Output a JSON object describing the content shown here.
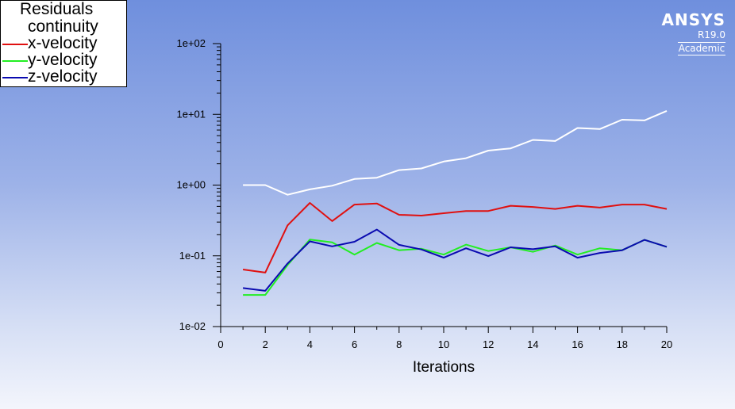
{
  "chart_data": {
    "type": "line",
    "xlabel": "Iterations",
    "ylabel": "",
    "xlim": [
      0,
      20
    ],
    "ylim": [
      0.01,
      100
    ],
    "yscale": "log",
    "xticks": [
      "0",
      "2",
      "4",
      "6",
      "8",
      "10",
      "12",
      "14",
      "16",
      "18",
      "20"
    ],
    "yticks": [
      "1e-02",
      "1e-01",
      "1e+00",
      "1e+01",
      "1e+02"
    ],
    "grid": false,
    "legend_title": "Residuals",
    "legend_position": "top-left",
    "x": [
      1,
      2,
      3,
      4,
      5,
      6,
      7,
      8,
      9,
      10,
      11,
      12,
      13,
      14,
      15,
      16,
      17,
      18,
      19,
      20
    ],
    "series": [
      {
        "name": "continuity",
        "color": "#ffffff",
        "values": [
          1.0,
          1.0,
          0.73,
          0.87,
          0.98,
          1.22,
          1.27,
          1.63,
          1.72,
          2.15,
          2.4,
          3.07,
          3.3,
          4.35,
          4.2,
          6.4,
          6.2,
          8.4,
          8.2,
          11.2
        ]
      },
      {
        "name": "x-velocity",
        "color": "#e01010",
        "values": [
          0.064,
          0.058,
          0.27,
          0.56,
          0.31,
          0.53,
          0.55,
          0.38,
          0.37,
          0.4,
          0.43,
          0.43,
          0.51,
          0.49,
          0.46,
          0.51,
          0.48,
          0.53,
          0.53,
          0.46
        ]
      },
      {
        "name": "y-velocity",
        "color": "#22ee22",
        "values": [
          0.028,
          0.028,
          0.074,
          0.17,
          0.155,
          0.104,
          0.152,
          0.12,
          0.126,
          0.104,
          0.144,
          0.117,
          0.132,
          0.114,
          0.14,
          0.104,
          0.128,
          0.12,
          0.168,
          0.134
        ]
      },
      {
        "name": "z-velocity",
        "color": "#0a0ab0",
        "values": [
          0.035,
          0.032,
          0.078,
          0.16,
          0.136,
          0.158,
          0.235,
          0.143,
          0.123,
          0.094,
          0.128,
          0.099,
          0.132,
          0.124,
          0.136,
          0.094,
          0.11,
          0.12,
          0.168,
          0.134
        ]
      }
    ]
  },
  "logo": {
    "name": "ANSYS",
    "version": "R19.0",
    "edition": "Academic"
  }
}
